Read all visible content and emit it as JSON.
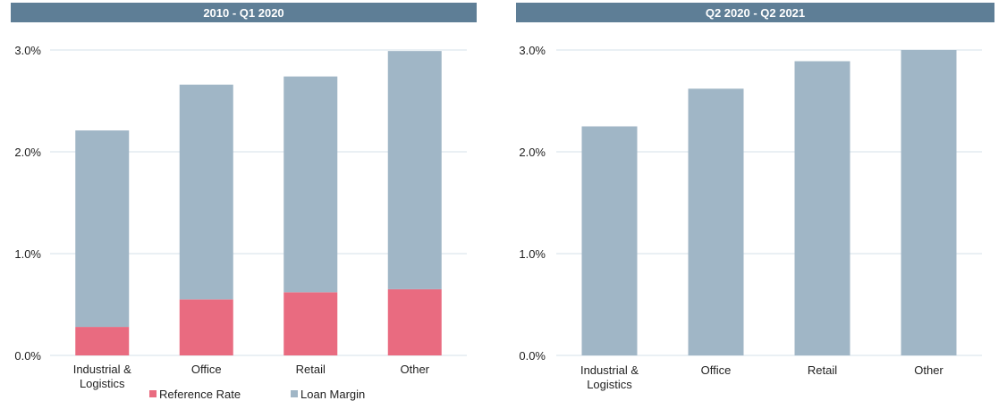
{
  "colors": {
    "header_bg": "#5e7e96",
    "reference_rate": "#e96b80",
    "loan_margin": "#a0b6c6",
    "gridline": "#d5e0ea"
  },
  "chart_data": [
    {
      "type": "bar",
      "stacked": true,
      "title": "2010 - Q1 2020",
      "categories": [
        "Industrial &\nLogistics",
        "Office",
        "Retail",
        "Other"
      ],
      "series": [
        {
          "name": "Reference Rate",
          "values": [
            0.28,
            0.55,
            0.62,
            0.65
          ]
        },
        {
          "name": "Loan Margin",
          "values": [
            1.93,
            2.11,
            2.12,
            2.34
          ]
        }
      ],
      "ylim": [
        0,
        3.0
      ],
      "yticks": [
        0,
        1,
        2,
        3
      ],
      "ytick_labels": [
        "0.0%",
        "1.0%",
        "2.0%",
        "3.0%"
      ],
      "grid": true,
      "legend": "bottom"
    },
    {
      "type": "bar",
      "title": "Q2 2020 - Q2 2021",
      "categories": [
        "Industrial &\nLogistics",
        "Office",
        "Retail",
        "Other"
      ],
      "series": [
        {
          "values": [
            2.25,
            2.62,
            2.89,
            3.0
          ]
        }
      ],
      "ylim": [
        0,
        3.0
      ],
      "yticks": [
        0,
        1,
        2,
        3
      ],
      "ytick_labels": [
        "0.0%",
        "1.0%",
        "2.0%",
        "3.0%"
      ],
      "grid": true
    }
  ]
}
